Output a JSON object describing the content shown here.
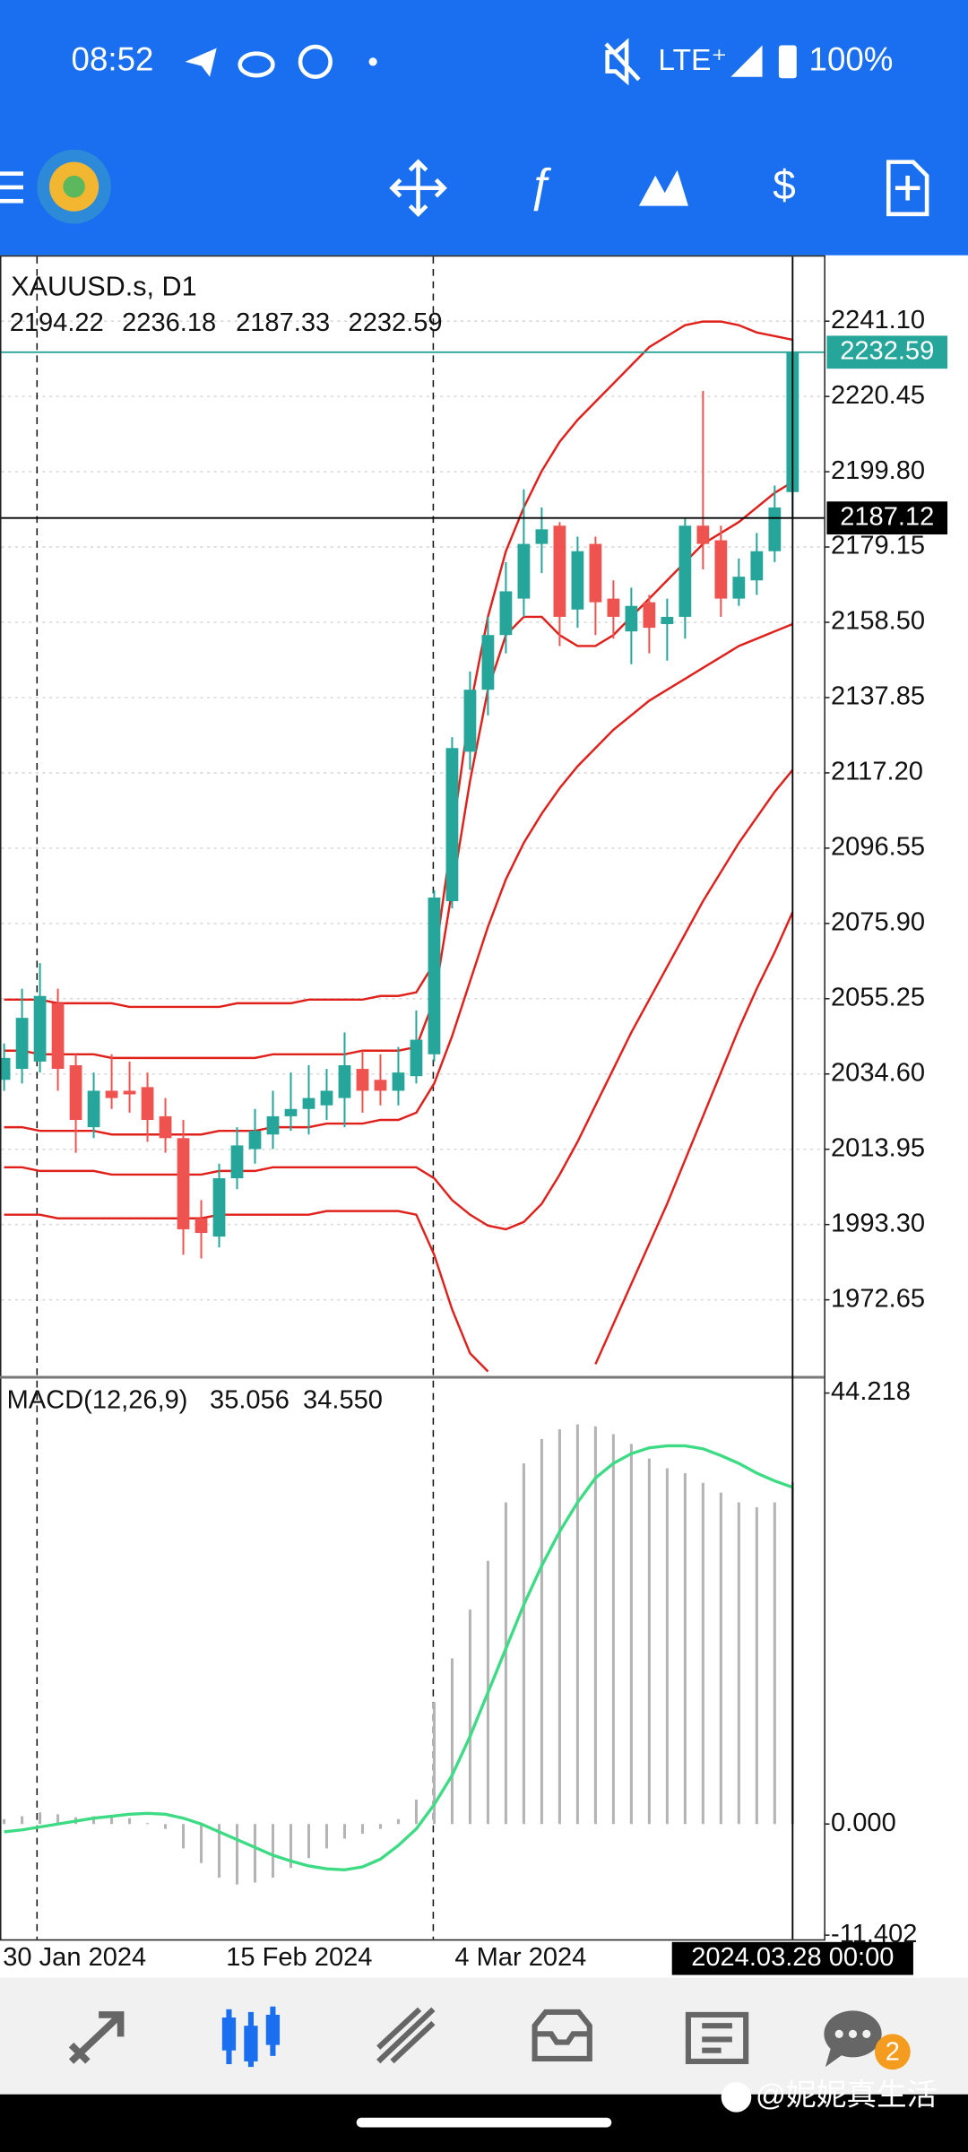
{
  "status_bar": {
    "time": "08:52",
    "network": "LTE⁺",
    "battery": "100%"
  },
  "chart_data": [
    {
      "type": "candlestick",
      "title": "XAUUSD.s, D1",
      "categories": [
        null,
        null,
        "30 Jan 2024",
        null,
        null,
        null,
        null,
        null,
        null,
        null,
        null,
        null,
        null,
        "15 Feb 2024",
        null,
        null,
        null,
        null,
        null,
        null,
        null,
        null,
        null,
        null,
        "4 Mar 2024",
        null,
        null,
        null,
        null,
        null,
        null,
        null,
        null,
        null,
        null,
        null,
        null,
        null,
        null,
        null,
        null,
        null,
        null,
        null,
        "2024.03.28 00:00"
      ],
      "open": [
        2033,
        2036,
        2038,
        2054,
        2037,
        2020,
        2030,
        2030,
        2031,
        2023,
        2017,
        1995,
        1990,
        2006,
        2014,
        2018,
        2023,
        2025,
        2026,
        2028,
        2036,
        2033,
        2030,
        2034,
        2040,
        2082,
        2123,
        2140,
        2155,
        2165,
        2180,
        2185,
        2162,
        2180,
        2165,
        2156,
        2164,
        2158,
        2160,
        2185,
        2181,
        2165,
        2170,
        2178,
        2194.22
      ],
      "high": [
        2043,
        2058,
        2065,
        2058,
        2040,
        2035,
        2040,
        2038,
        2035,
        2028,
        2022,
        2000,
        2010,
        2020,
        2025,
        2030,
        2035,
        2037,
        2036,
        2046,
        2041,
        2040,
        2042,
        2052,
        2085,
        2127,
        2145,
        2160,
        2175,
        2195,
        2190,
        2186,
        2182,
        2182,
        2170,
        2168,
        2166,
        2165,
        2187,
        2222,
        2185,
        2176,
        2183,
        2196,
        2236.18
      ],
      "low": [
        2030,
        2032,
        2035,
        2030,
        2013,
        2017,
        2025,
        2024,
        2016,
        2013,
        1985,
        1984,
        1987,
        2003,
        2010,
        2014,
        2019,
        2018,
        2022,
        2020,
        2024,
        2026,
        2026,
        2032,
        2038,
        2080,
        2118,
        2133,
        2150,
        2160,
        2172,
        2152,
        2157,
        2155,
        2154,
        2147,
        2150,
        2148,
        2154,
        2173,
        2160,
        2163,
        2166,
        2175,
        2187.33
      ],
      "close": [
        2039,
        2050,
        2056,
        2036,
        2022,
        2030,
        2028,
        2029,
        2022,
        2017,
        1992,
        1991,
        2006,
        2015,
        2019,
        2023,
        2025,
        2028,
        2030,
        2037,
        2030,
        2030,
        2035,
        2044,
        2083,
        2124,
        2140,
        2155,
        2167,
        2180,
        2184,
        2160,
        2178,
        2164,
        2160,
        2163,
        2157,
        2160,
        2185,
        2180,
        2165,
        2171,
        2178,
        2190,
        2232.59
      ],
      "up_color": "#26a69a",
      "down_color": "#ef5350",
      "series": [
        {
          "color": "#e0201b",
          "values": [
            2055,
            2055,
            2055,
            2054,
            2054,
            2054,
            2054,
            2053,
            2053,
            2053,
            2053,
            2053,
            2053,
            2054,
            2054,
            2054,
            2054,
            2055,
            2055,
            2055,
            2055,
            2056,
            2056,
            2057,
            2065,
            2100,
            2135,
            2160,
            2178,
            2190,
            2200,
            2208,
            2214,
            2219,
            2224,
            2229,
            2234,
            2237,
            2240,
            2241,
            2241,
            2240,
            2238,
            2237,
            2236
          ]
        },
        {
          "color": "#e0201b",
          "values": [
            2041,
            2041,
            2040,
            2040,
            2040,
            2040,
            2039,
            2039,
            2039,
            2039,
            2039,
            2039,
            2039,
            2039,
            2039,
            2040,
            2040,
            2040,
            2040,
            2040,
            2041,
            2041,
            2041,
            2042,
            2055,
            2085,
            2115,
            2140,
            2155,
            2160,
            2160,
            2155,
            2152,
            2152,
            2155,
            2160,
            2165,
            2170,
            2175,
            2180,
            2183,
            2186,
            2190,
            2194,
            2197
          ]
        },
        {
          "color": "#e0201b",
          "values": [
            2020,
            2020,
            2019,
            2019,
            2019,
            2019,
            2018,
            2018,
            2018,
            2018,
            2018,
            2018,
            2019,
            2019,
            2019,
            2020,
            2020,
            2020,
            2021,
            2021,
            2021,
            2022,
            2022,
            2024,
            2032,
            2045,
            2060,
            2075,
            2088,
            2098,
            2106,
            2113,
            2119,
            2124,
            2129,
            2133,
            2137,
            2140,
            2143,
            2146,
            2149,
            2152,
            2154,
            2156,
            2158
          ]
        },
        {
          "color": "#e0201b",
          "values": [
            2009,
            2009,
            2008,
            2008,
            2008,
            2008,
            2007,
            2007,
            2007,
            2007,
            2007,
            2007,
            2008,
            2008,
            2008,
            2009,
            2009,
            2009,
            2009,
            2009,
            2009,
            2009,
            2009,
            2009,
            2006,
            2000,
            1996,
            1993,
            1992,
            1994,
            1999,
            2007,
            2016,
            2026,
            2036,
            2046,
            2055,
            2064,
            2073,
            2082,
            2090,
            2098,
            2105,
            2112,
            2118
          ]
        },
        {
          "color": "#e0201b",
          "values": [
            1996,
            1996,
            1996,
            1995,
            1995,
            1995,
            1995,
            1995,
            1995,
            1995,
            1995,
            1995,
            1996,
            1996,
            1996,
            1996,
            1996,
            1996,
            1997,
            1997,
            1997,
            1997,
            1997,
            1996,
            1985,
            1970,
            1958,
            1953,
            null,
            null,
            null,
            null,
            null,
            1955,
            1966,
            1977,
            1988,
            1999,
            2011,
            2023,
            2035,
            2047,
            2058,
            2068,
            2079
          ]
        }
      ],
      "ylim": [
        1951.6,
        2258.8
      ],
      "yticks": [
        {
          "value": 2241.1,
          "label": "2241.10"
        },
        2220.45,
        {
          "value": 2199.8,
          "label": "2199.80"
        },
        2179.15,
        {
          "value": 2158.5,
          "label": "2158.50"
        },
        2137.85,
        {
          "value": 2117.2,
          "label": "2117.20"
        },
        2096.55,
        {
          "value": 2075.9,
          "label": "2075.90"
        },
        2055.25,
        {
          "value": 2034.6,
          "label": "2034.60"
        },
        2013.95,
        {
          "value": 1993.3,
          "label": "1993.30"
        },
        1972.65
      ],
      "grid": true,
      "crosshair_price": 2187.12
    },
    {
      "type": "macd",
      "title": "MACD(12,26,9)",
      "series": [
        {
          "color": "#b4b4b4",
          "values": [
            0.5,
            0.8,
            1.2,
            1.0,
            0.7,
            0.8,
            0.9,
            0.6,
            0.1,
            -0.5,
            -2.5,
            -4,
            -5.5,
            -6.2,
            -6,
            -5.5,
            -4.5,
            -3.5,
            -2.5,
            -1.5,
            -1,
            -0.5,
            0.5,
            2.5,
            12.5,
            17,
            22,
            27,
            33,
            37,
            39.5,
            40.5,
            41,
            40.8,
            40,
            39,
            37.5,
            36.5,
            36,
            35,
            34,
            33,
            32.5,
            33,
            35.056
          ]
        },
        {
          "color": "#3ddc84",
          "values": [
            -0.8,
            -0.6,
            -0.3,
            0,
            0.3,
            0.6,
            0.8,
            1,
            1.1,
            1,
            0.6,
            0,
            -0.8,
            -1.6,
            -2.4,
            -3.2,
            -3.8,
            -4.3,
            -4.6,
            -4.7,
            -4.4,
            -3.6,
            -2.2,
            -0.5,
            2,
            5,
            9,
            13.5,
            18,
            22.5,
            26.5,
            30,
            33,
            35.5,
            37,
            38,
            38.6,
            38.8,
            38.8,
            38.5,
            37.8,
            37,
            36,
            35.2,
            34.55
          ],
          "value_labels": [
            null,
            null,
            null,
            null,
            null,
            null,
            null,
            null,
            null,
            null,
            null,
            null,
            null,
            null,
            null,
            null,
            null,
            null,
            null,
            null,
            null,
            null,
            null,
            null,
            null,
            null,
            null,
            null,
            null,
            null,
            null,
            null,
            null,
            null,
            null,
            null,
            null,
            null,
            null,
            null,
            null,
            null,
            null,
            null,
            "34.550"
          ]
        }
      ],
      "ylim": [
        -11.402,
        44.218
      ],
      "yticks": [
        44.218,
        {
          "value": 0,
          "label": "0.000"
        },
        -11.402
      ]
    }
  ],
  "bottom_nav": {
    "badge": 2
  },
  "watermark": "@妮妮真生活"
}
